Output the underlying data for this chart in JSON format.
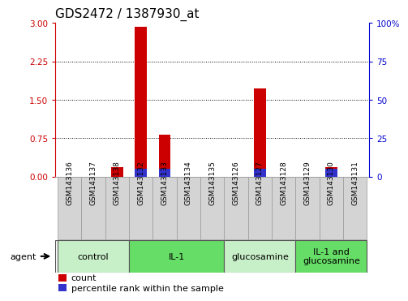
{
  "title": "GDS2472 / 1387930_at",
  "samples": [
    "GSM143136",
    "GSM143137",
    "GSM143138",
    "GSM143132",
    "GSM143133",
    "GSM143134",
    "GSM143135",
    "GSM143126",
    "GSM143127",
    "GSM143128",
    "GSM143129",
    "GSM143130",
    "GSM143131"
  ],
  "count_values": [
    0.0,
    0.0,
    0.18,
    2.92,
    0.82,
    0.0,
    0.0,
    0.0,
    1.72,
    0.0,
    0.0,
    0.18,
    0.0
  ],
  "percentile_values": [
    0.0,
    0.0,
    0.0,
    5.0,
    5.0,
    0.0,
    0.0,
    0.0,
    5.0,
    0.0,
    0.0,
    5.0,
    0.0
  ],
  "ylim_left": [
    0,
    3
  ],
  "ylim_right": [
    0,
    100
  ],
  "yticks_left": [
    0,
    0.75,
    1.5,
    2.25,
    3
  ],
  "yticks_right": [
    0,
    25,
    50,
    75,
    100
  ],
  "groups": [
    {
      "label": "control",
      "indices": [
        0,
        1,
        2
      ],
      "color": "#c8f0c8"
    },
    {
      "label": "IL-1",
      "indices": [
        3,
        4,
        5,
        6
      ],
      "color": "#66dd66"
    },
    {
      "label": "glucosamine",
      "indices": [
        7,
        8,
        9
      ],
      "color": "#c8f0c8"
    },
    {
      "label": "IL-1 and\nglucosamine",
      "indices": [
        10,
        11,
        12
      ],
      "color": "#66dd66"
    }
  ],
  "bar_width": 0.5,
  "count_color": "#CC0000",
  "percentile_color": "#3333CC",
  "agent_label": "agent",
  "legend_count": "count",
  "legend_percentile": "percentile rank within the sample",
  "background_color": "#ffffff",
  "tick_color_left": "#CC0000",
  "tick_color_right": "#0000CC",
  "title_fontsize": 11,
  "tick_fontsize": 7.5,
  "sample_fontsize": 6.5,
  "group_fontsize": 8,
  "legend_fontsize": 8
}
